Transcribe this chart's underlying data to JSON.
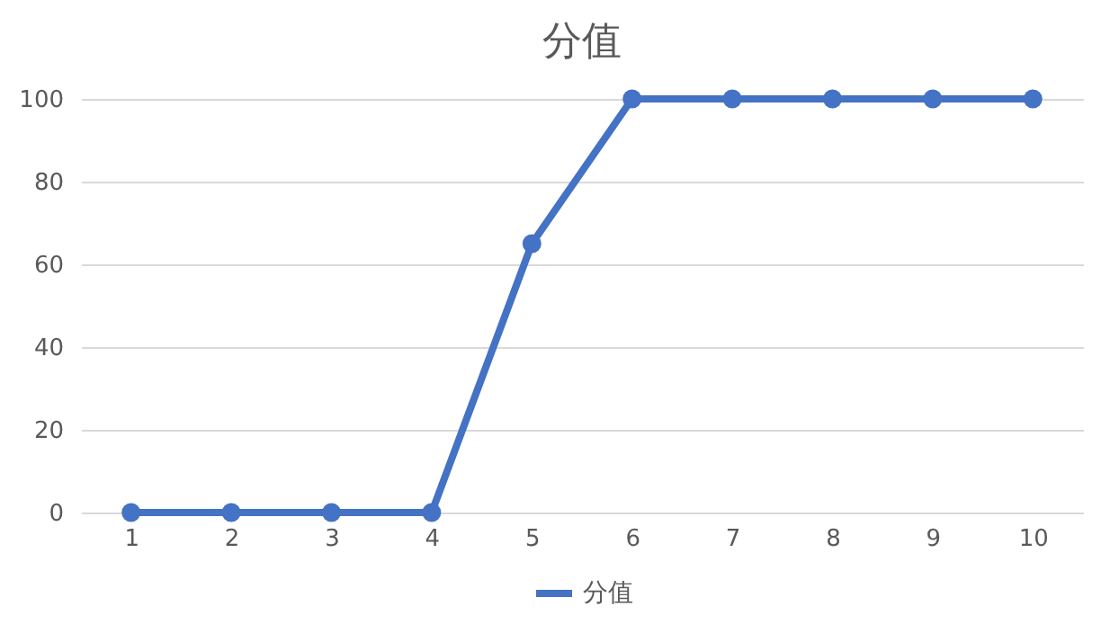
{
  "chart_data": {
    "type": "line",
    "title": "分值",
    "categories": [
      "1",
      "2",
      "3",
      "4",
      "5",
      "6",
      "7",
      "8",
      "9",
      "10"
    ],
    "series": [
      {
        "name": "分值",
        "color": "#4472c4",
        "values": [
          0,
          0,
          0,
          0,
          65,
          100,
          100,
          100,
          100,
          100
        ]
      }
    ],
    "ylim": [
      0,
      100
    ],
    "yticks": [
      0,
      20,
      40,
      60,
      80,
      100
    ],
    "grid": "y",
    "legend": "bottom",
    "marker": "circle",
    "line_style": "solid"
  }
}
